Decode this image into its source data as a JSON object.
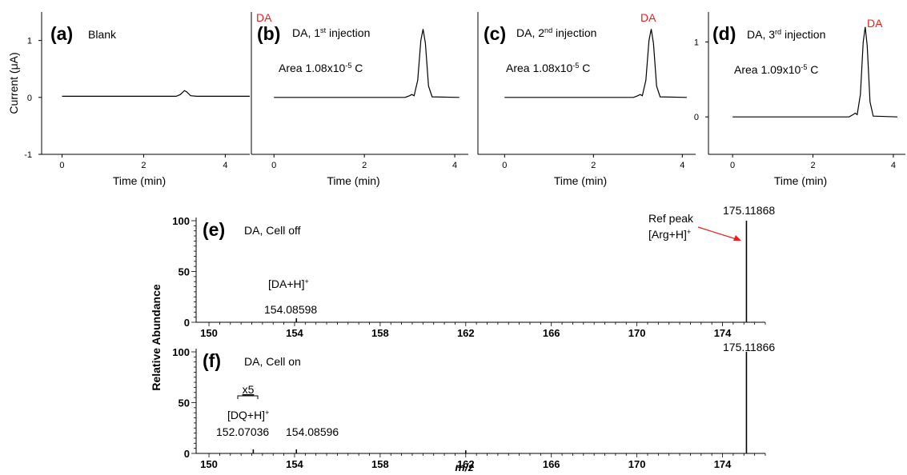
{
  "colors": {
    "trace": "#000000",
    "analyte_label": "#e8211c",
    "arrow": "#e8211c"
  },
  "chart_data": [
    {
      "type": "line",
      "panel": "(a)",
      "label": "Blank",
      "ylabel": "Current (μA)",
      "xlabel": "Time (min)",
      "xlim": [
        -0.5,
        4.6
      ],
      "ylim": [
        -1,
        1.5
      ],
      "xticks": [
        "0",
        "2",
        "4"
      ],
      "yticks": [
        "-1",
        "0",
        "1"
      ],
      "x": [
        0,
        2.8,
        2.9,
        3.0,
        3.05,
        3.15,
        3.3,
        4.6
      ],
      "y": [
        0.02,
        0.02,
        0.05,
        0.12,
        0.1,
        0.03,
        0.02,
        0.02
      ]
    },
    {
      "type": "line",
      "panel": "(b)",
      "label": "DA, 1st injection",
      "label_parts": [
        "DA, 1",
        "st",
        " injection"
      ],
      "annotation": "Area 1.08x10",
      "annotation_exp": "-5",
      "annotation_unit": " C",
      "peak_label": "DA",
      "xlabel": "Time (min)",
      "xlim": [
        -0.5,
        4.3
      ],
      "ylim": [
        -1,
        1.5
      ],
      "xticks": [
        "0",
        "2",
        "4"
      ],
      "x": [
        0,
        2.9,
        3.0,
        3.05,
        3.1,
        3.18,
        3.25,
        3.3,
        3.35,
        3.42,
        3.5,
        4.1
      ],
      "y": [
        0,
        0,
        0.03,
        0.05,
        0.03,
        0.3,
        1.0,
        1.2,
        0.95,
        0.2,
        0.01,
        0
      ]
    },
    {
      "type": "line",
      "panel": "(c)",
      "label": "DA,  2nd injection",
      "label_parts": [
        "DA,  2",
        "nd",
        " injection"
      ],
      "annotation": "Area 1.08x10",
      "annotation_exp": "-5",
      "annotation_unit": " C",
      "peak_label": "DA",
      "xlabel": "Time (min)",
      "xlim": [
        -0.6,
        4.3
      ],
      "ylim": [
        -1,
        1.5
      ],
      "xticks": [
        "0",
        "2",
        "4"
      ],
      "x": [
        0,
        2.9,
        3.0,
        3.05,
        3.1,
        3.18,
        3.25,
        3.3,
        3.35,
        3.42,
        3.5,
        4.1
      ],
      "y": [
        0,
        0,
        0.03,
        0.05,
        0.03,
        0.3,
        1.0,
        1.2,
        0.95,
        0.2,
        0.01,
        0
      ]
    },
    {
      "type": "line",
      "panel": "(d)",
      "label": "DA, 3rd injection",
      "label_parts": [
        "DA, 3",
        "rd",
        " injection"
      ],
      "annotation": "Area 1.09x10",
      "annotation_exp": "-5",
      "annotation_unit": " C",
      "peak_label": "DA",
      "xlabel": "Time (min)",
      "xlim": [
        -0.6,
        4.3
      ],
      "ylim": [
        -0.5,
        1.4
      ],
      "xticks": [
        "0",
        "2",
        "4"
      ],
      "yticks": [
        "0",
        "1"
      ],
      "x": [
        0,
        2.9,
        3.0,
        3.05,
        3.1,
        3.18,
        3.25,
        3.3,
        3.35,
        3.42,
        3.5,
        4.1
      ],
      "y": [
        0,
        0,
        0.03,
        0.05,
        0.03,
        0.3,
        1.0,
        1.2,
        0.95,
        0.2,
        0.01,
        0
      ]
    },
    {
      "type": "bar",
      "panel": "(e)",
      "label": "DA, Cell off",
      "ylabel": "Relative Abundance",
      "xlim": [
        149.4,
        176.0
      ],
      "ylim": [
        0,
        100
      ],
      "xticks": [
        "150",
        "154",
        "158",
        "162",
        "166",
        "170",
        "174"
      ],
      "yticks": [
        "0",
        "50",
        "100"
      ],
      "x": [
        154.08598,
        175.11868
      ],
      "y": [
        4,
        100
      ],
      "peak_labels": [
        {
          "lines": [
            "[DA+H]",
            "154.08598"
          ],
          "sup": "+"
        },
        {
          "lines": [
            "175.11868"
          ]
        },
        {
          "lines": [
            "Ref peak",
            "[Arg+H]"
          ],
          "sup": "+"
        }
      ]
    },
    {
      "type": "bar",
      "panel": "(f)",
      "label": "DA, Cell on",
      "xlabel": "m/z",
      "xlim": [
        149.4,
        176.0
      ],
      "ylim": [
        0,
        100
      ],
      "xticks": [
        "150",
        "154",
        "158",
        "162",
        "166",
        "170",
        "174"
      ],
      "yticks": [
        "0",
        "50",
        "100"
      ],
      "x": [
        152.07036,
        154.08596,
        162.0,
        175.11866
      ],
      "y": [
        4,
        4,
        3,
        100
      ],
      "scale_note": "x5",
      "peak_labels": [
        {
          "lines": [
            "[DQ+H]",
            "152.07036"
          ],
          "sup": "+"
        },
        {
          "lines": [
            "154.08596"
          ]
        },
        {
          "lines": [
            "175.11866"
          ]
        }
      ]
    }
  ]
}
